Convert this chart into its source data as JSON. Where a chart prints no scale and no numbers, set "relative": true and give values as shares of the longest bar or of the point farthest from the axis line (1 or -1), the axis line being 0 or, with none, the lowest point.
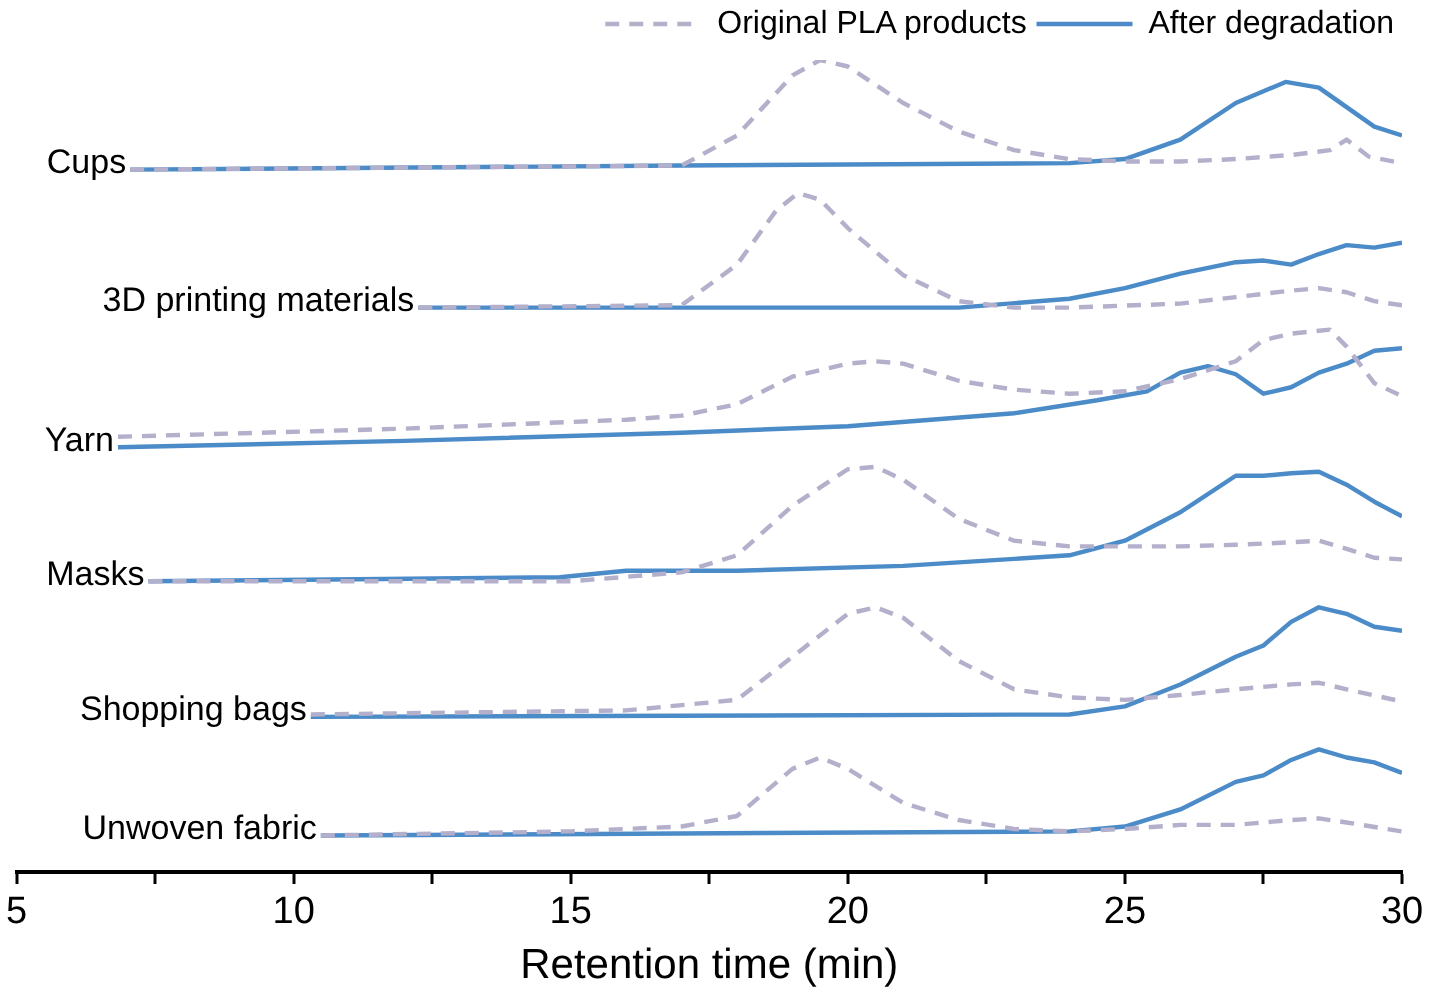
{
  "chart_data": {
    "type": "line",
    "relative": true,
    "xlabel": "Retention time (min)",
    "xlim": [
      5,
      30
    ],
    "xticks": [
      5,
      {
        "value": 7.5,
        "label": null
      },
      10,
      {
        "value": 12.5,
        "label": null
      },
      15,
      {
        "value": 17.5,
        "label": null
      },
      20,
      {
        "value": 22.5,
        "label": null
      },
      25,
      {
        "value": 27.5,
        "label": null
      },
      30
    ],
    "grid": false,
    "legend": "top right",
    "marker": "none",
    "series": [
      {
        "name": "Original PLA products",
        "color": "#b4afcb",
        "line_style": "dashed",
        "x": [
          7.05,
          17,
          18,
          19,
          19.5,
          20,
          21,
          22,
          23,
          24,
          25,
          26,
          27,
          28,
          28.7,
          29,
          29.4,
          30
        ],
        "values": [
          0.865,
          0.87,
          0.907,
          0.981,
          1,
          0.992,
          0.947,
          0.912,
          0.889,
          0.878,
          0.875,
          0.875,
          0.878,
          0.883,
          0.889,
          0.902,
          0.881,
          0.873
        ]
      },
      {
        "name": "After degradation",
        "color": "#4b8bc8",
        "line_style": "solid",
        "x": [
          7.05,
          17,
          24,
          25,
          26,
          27,
          27.9,
          28.5,
          29,
          29.5,
          30
        ],
        "values": [
          0.865,
          0.87,
          0.873,
          0.878,
          0.902,
          0.947,
          0.973,
          0.966,
          0.942,
          0.918,
          0.907
        ]
      },
      {
        "color": "#b4afcb",
        "line_style": "dashed",
        "x": [
          12.25,
          17,
          18,
          18.7,
          19.1,
          19.5,
          20,
          21,
          22,
          23,
          24,
          26,
          27,
          28,
          28.5,
          29,
          29.5,
          30
        ],
        "values": [
          0.695,
          0.698,
          0.748,
          0.814,
          0.836,
          0.828,
          0.793,
          0.735,
          0.703,
          0.695,
          0.695,
          0.7,
          0.708,
          0.716,
          0.719,
          0.714,
          0.703,
          0.698
        ]
      },
      {
        "color": "#4b8bc8",
        "line_style": "solid",
        "x": [
          12.25,
          22,
          24,
          25,
          26,
          27,
          27.5,
          28,
          28.5,
          29,
          29.5,
          30
        ],
        "values": [
          0.695,
          0.695,
          0.706,
          0.719,
          0.737,
          0.751,
          0.753,
          0.748,
          0.761,
          0.772,
          0.769,
          0.775
        ]
      },
      {
        "color": "#b4afcb",
        "line_style": "dashed",
        "x": [
          6.83,
          12,
          16,
          17,
          18,
          19,
          20,
          20.5,
          21,
          22,
          23,
          24,
          25,
          26,
          27,
          27.5,
          28,
          28.7,
          29,
          29.5,
          30
        ],
        "values": [
          0.536,
          0.546,
          0.557,
          0.562,
          0.576,
          0.61,
          0.626,
          0.629,
          0.626,
          0.605,
          0.594,
          0.589,
          0.592,
          0.607,
          0.629,
          0.655,
          0.663,
          0.668,
          0.647,
          0.602,
          0.586
        ]
      },
      {
        "color": "#4b8bc8",
        "line_style": "solid",
        "x": [
          6.83,
          12,
          17,
          20,
          23,
          24.5,
          25.4,
          26,
          26.5,
          27,
          27.5,
          28,
          28.5,
          29,
          29.5,
          30
        ],
        "values": [
          0.523,
          0.531,
          0.541,
          0.549,
          0.565,
          0.581,
          0.592,
          0.615,
          0.623,
          0.613,
          0.589,
          0.597,
          0.615,
          0.626,
          0.642,
          0.645
        ]
      },
      {
        "color": "#b4afcb",
        "line_style": "dashed",
        "x": [
          7.38,
          15,
          17,
          18,
          19,
          20,
          20.5,
          21,
          22,
          23,
          24,
          25,
          26,
          27,
          28,
          28.5,
          29,
          29.5,
          30
        ],
        "values": [
          0.358,
          0.358,
          0.369,
          0.39,
          0.451,
          0.496,
          0.499,
          0.483,
          0.435,
          0.408,
          0.401,
          0.401,
          0.401,
          0.403,
          0.406,
          0.408,
          0.398,
          0.387,
          0.385
        ]
      },
      {
        "color": "#4b8bc8",
        "line_style": "solid",
        "x": [
          7.38,
          14.8,
          16,
          18,
          21,
          24,
          25,
          26,
          27,
          27.5,
          28,
          28.5,
          29,
          29.5,
          30
        ],
        "values": [
          0.358,
          0.363,
          0.371,
          0.371,
          0.377,
          0.39,
          0.408,
          0.443,
          0.488,
          0.488,
          0.491,
          0.493,
          0.477,
          0.456,
          0.438
        ]
      },
      {
        "color": "#b4afcb",
        "line_style": "dashed",
        "x": [
          10.31,
          16,
          18,
          19,
          20,
          20.5,
          21,
          22,
          23,
          24,
          25,
          26,
          27,
          28,
          28.5,
          29,
          30
        ],
        "values": [
          0.194,
          0.199,
          0.212,
          0.265,
          0.318,
          0.326,
          0.313,
          0.26,
          0.225,
          0.215,
          0.212,
          0.218,
          0.225,
          0.231,
          0.233,
          0.225,
          0.21
        ]
      },
      {
        "color": "#4b8bc8",
        "line_style": "solid",
        "x": [
          10.31,
          24,
          25,
          26,
          27,
          27.5,
          28,
          28.5,
          29,
          29.5,
          30
        ],
        "values": [
          0.191,
          0.194,
          0.204,
          0.231,
          0.265,
          0.279,
          0.308,
          0.326,
          0.318,
          0.302,
          0.297
        ]
      },
      {
        "color": "#b4afcb",
        "line_style": "dashed",
        "x": [
          10.49,
          15,
          17,
          18,
          19,
          19.5,
          20,
          21,
          22,
          23,
          24,
          25,
          26,
          27,
          28,
          28.5,
          29,
          30
        ],
        "values": [
          0.045,
          0.05,
          0.056,
          0.069,
          0.127,
          0.141,
          0.127,
          0.085,
          0.064,
          0.053,
          0.05,
          0.053,
          0.058,
          0.058,
          0.064,
          0.066,
          0.061,
          0.05
        ]
      },
      {
        "color": "#4b8bc8",
        "line_style": "solid",
        "x": [
          10.49,
          24,
          25,
          26,
          27,
          27.5,
          28,
          28.5,
          29,
          29.5,
          30
        ],
        "values": [
          0.045,
          0.05,
          0.056,
          0.077,
          0.111,
          0.119,
          0.138,
          0.151,
          0.141,
          0.135,
          0.122
        ]
      }
    ],
    "annotations": [
      {
        "text": "Cups",
        "x": 7.05,
        "y": 0.865
      },
      {
        "text": "3D printing materials",
        "x": 12.25,
        "y": 0.695
      },
      {
        "text": "Yarn",
        "x": 6.83,
        "y": 0.523
      },
      {
        "text": "Masks",
        "x": 7.38,
        "y": 0.358
      },
      {
        "text": "Shopping bags",
        "x": 10.31,
        "y": 0.191
      },
      {
        "text": "Unwoven fabric",
        "x": 10.49,
        "y": 0.045
      }
    ]
  }
}
